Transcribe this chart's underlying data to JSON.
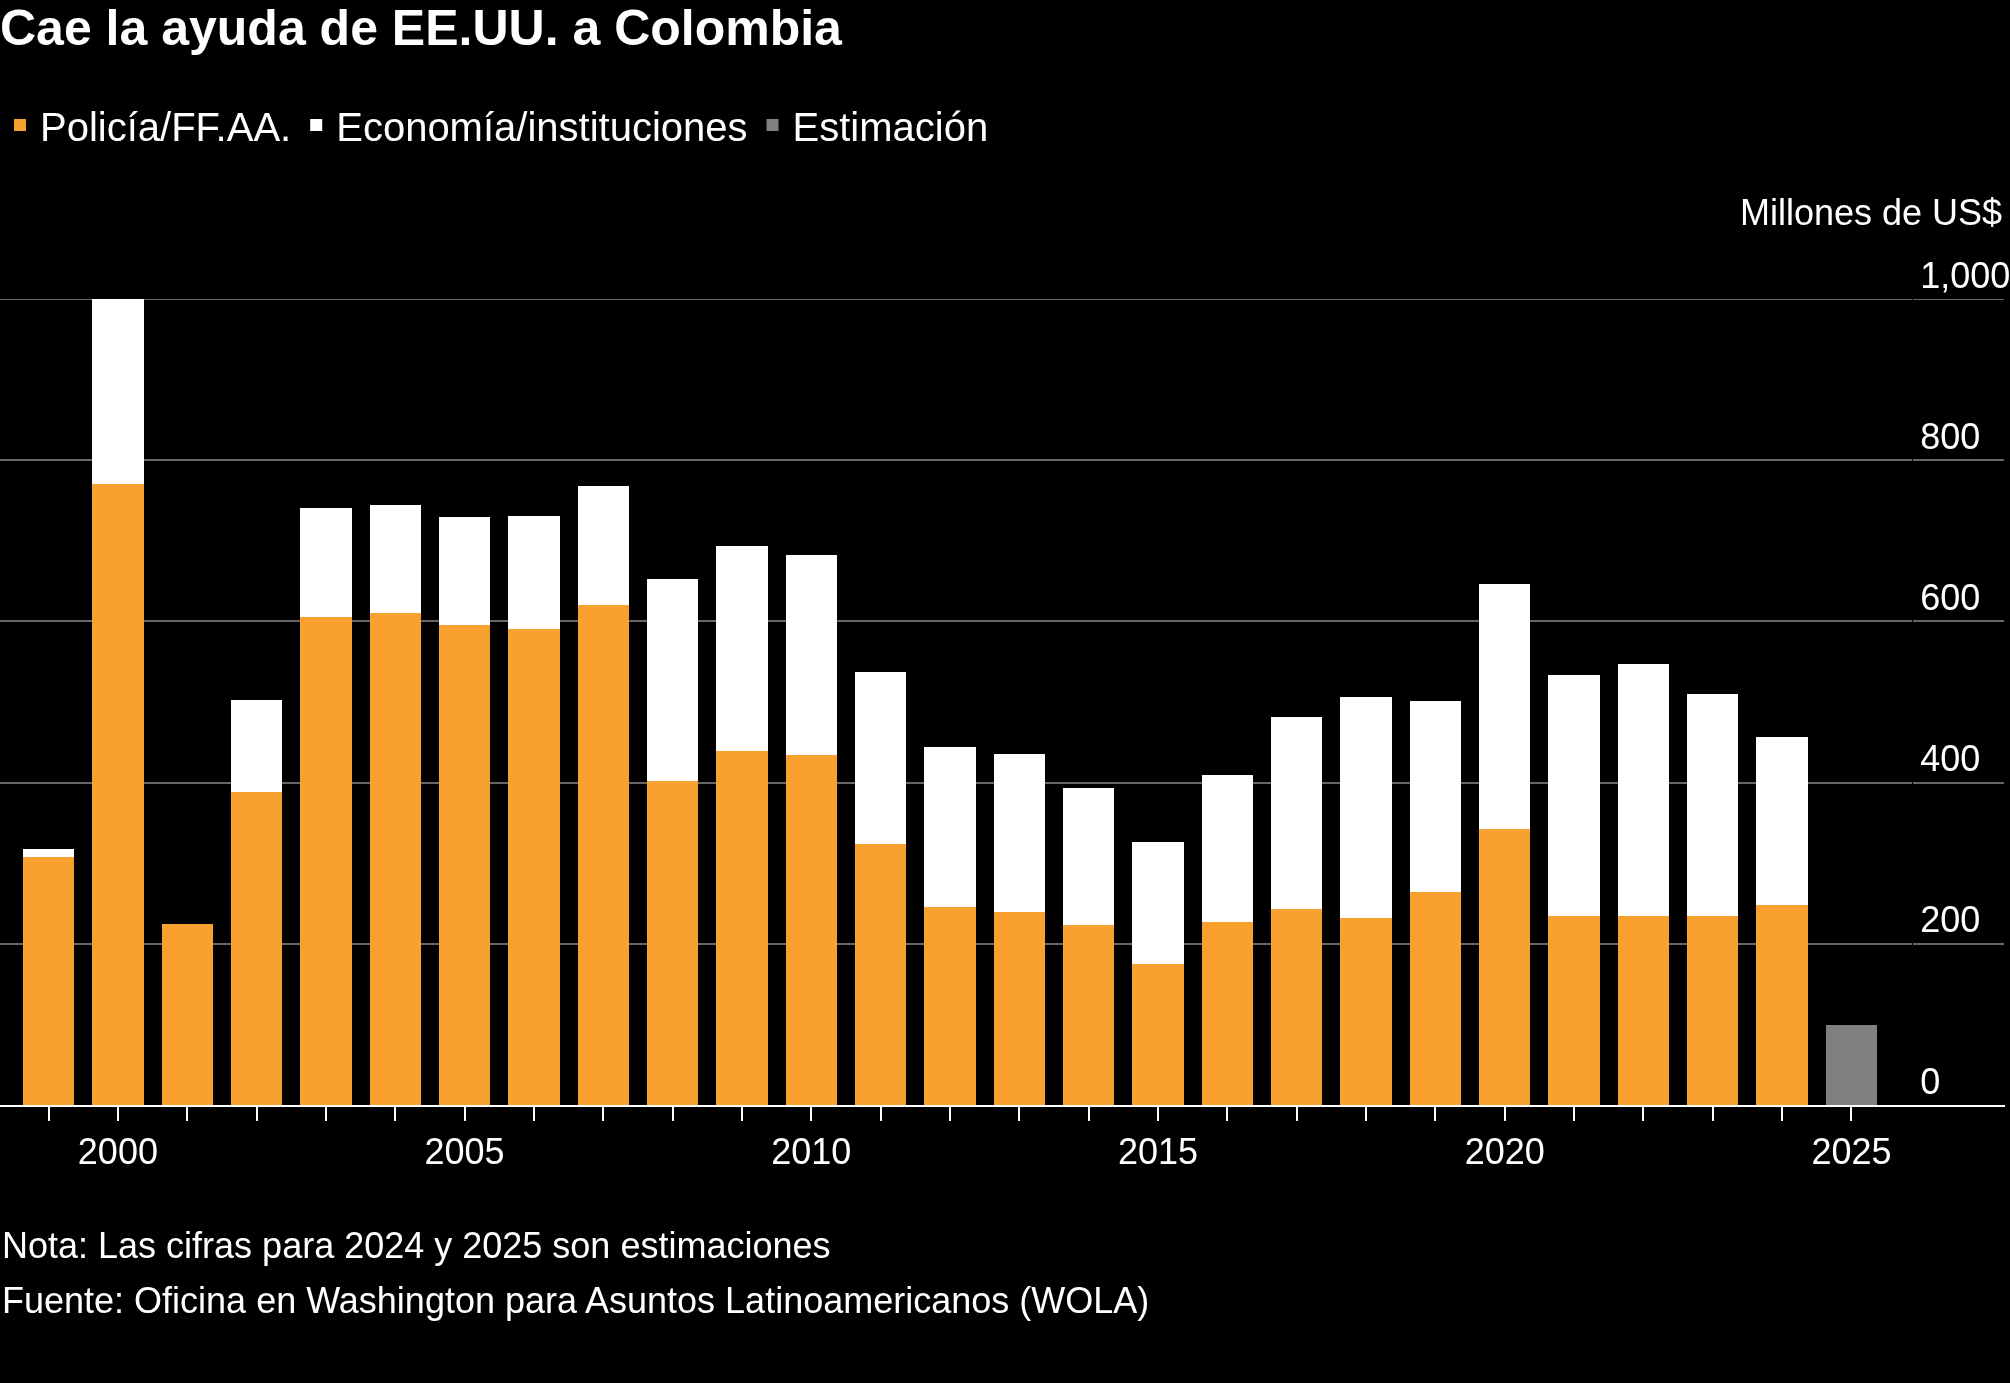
{
  "chart_data": {
    "type": "bar",
    "title": "Cae la ayuda de EE.UU. a Colombia",
    "ylabel": "Millones de US$",
    "stacked": true,
    "x": [
      1999,
      2000,
      2001,
      2002,
      2003,
      2004,
      2005,
      2006,
      2007,
      2008,
      2009,
      2010,
      2011,
      2012,
      2013,
      2014,
      2015,
      2016,
      2017,
      2018,
      2019,
      2020,
      2021,
      2022,
      2023,
      2024,
      2025
    ],
    "series": [
      {
        "name": "Policía/FF.AA.",
        "color": "#f9a12e",
        "values": [
          308,
          771,
          224,
          388,
          606,
          610,
          596,
          590,
          620,
          402,
          439,
          434,
          324,
          246,
          240,
          223,
          175,
          227,
          243,
          232,
          264,
          343,
          235,
          235,
          234,
          248,
          null
        ]
      },
      {
        "name": "Economía/instituciones",
        "color": "#ffffff",
        "values": [
          10,
          229,
          0,
          114,
          135,
          134,
          134,
          141,
          148,
          250,
          254,
          248,
          213,
          198,
          196,
          170,
          151,
          183,
          239,
          274,
          237,
          304,
          299,
          312,
          276,
          208,
          null
        ]
      },
      {
        "name": "Estimación",
        "color": "#808080",
        "values": [
          null,
          null,
          null,
          null,
          null,
          null,
          null,
          null,
          null,
          null,
          null,
          null,
          null,
          null,
          null,
          null,
          null,
          null,
          null,
          null,
          null,
          null,
          null,
          null,
          null,
          null,
          99
        ]
      }
    ],
    "xlim": [
      1998.3,
      2027.2
    ],
    "xticks": [
      {
        "value": 1999,
        "label": null
      },
      2000,
      {
        "value": 2001,
        "label": null
      },
      {
        "value": 2002,
        "label": null
      },
      {
        "value": 2003,
        "label": null
      },
      {
        "value": 2004,
        "label": null
      },
      2005,
      {
        "value": 2006,
        "label": null
      },
      {
        "value": 2007,
        "label": null
      },
      {
        "value": 2008,
        "label": null
      },
      {
        "value": 2009,
        "label": null
      },
      2010,
      {
        "value": 2011,
        "label": null
      },
      {
        "value": 2012,
        "label": null
      },
      {
        "value": 2013,
        "label": null
      },
      {
        "value": 2014,
        "label": null
      },
      2015,
      {
        "value": 2016,
        "label": null
      },
      {
        "value": 2017,
        "label": null
      },
      {
        "value": 2018,
        "label": null
      },
      {
        "value": 2019,
        "label": null
      },
      2020,
      {
        "value": 2021,
        "label": null
      },
      {
        "value": 2022,
        "label": null
      },
      {
        "value": 2023,
        "label": null
      },
      {
        "value": 2024,
        "label": null
      },
      2025
    ],
    "ylim": [
      0,
      1000
    ],
    "yticks": [
      0,
      200,
      400,
      600,
      800,
      {
        "value": 1000,
        "label": "1,000"
      }
    ],
    "grid": "y",
    "legend": "top left",
    "annotations": [
      "Nota: Las cifras para 2024 y 2025 son estimaciones",
      "Fuente: Oficina en Washington para Asuntos Latinoamericanos (WOLA)"
    ]
  }
}
